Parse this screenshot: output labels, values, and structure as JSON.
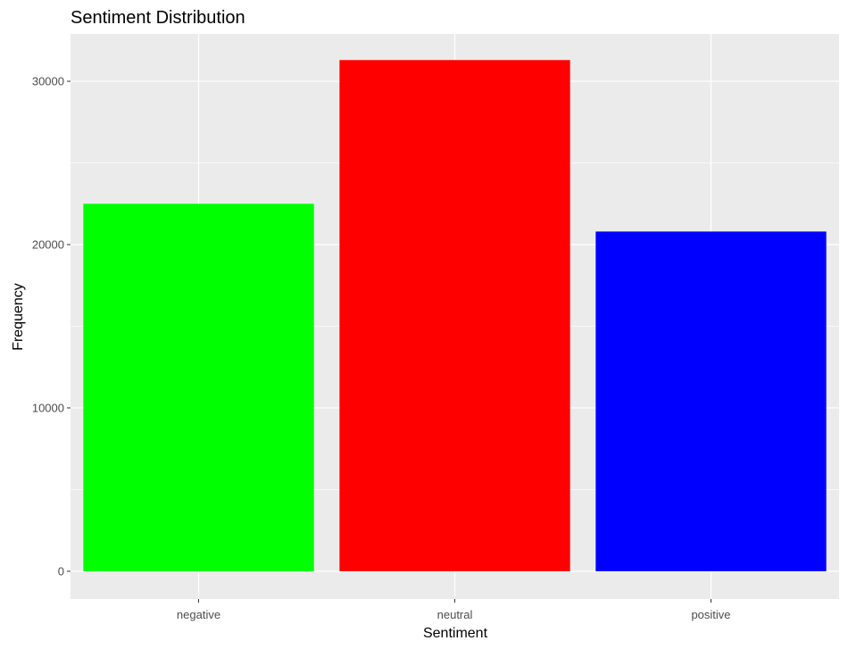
{
  "chart_data": {
    "type": "bar",
    "title": "Sentiment Distribution",
    "xlabel": "Sentiment",
    "ylabel": "Frequency",
    "categories": [
      "negative",
      "neutral",
      "positive"
    ],
    "values": [
      22500,
      31300,
      20800
    ],
    "colors": [
      "#00ff00",
      "#ff0000",
      "#0000ff"
    ],
    "ylim": [
      -1700,
      32900
    ],
    "yticks": [
      0,
      10000,
      20000,
      30000
    ],
    "ytick_labels": [
      "0",
      "10000",
      "20000",
      "30000"
    ],
    "grid": true,
    "panel_background": "#ebebeb",
    "gridline_color": "#ffffff",
    "legend": "none"
  }
}
